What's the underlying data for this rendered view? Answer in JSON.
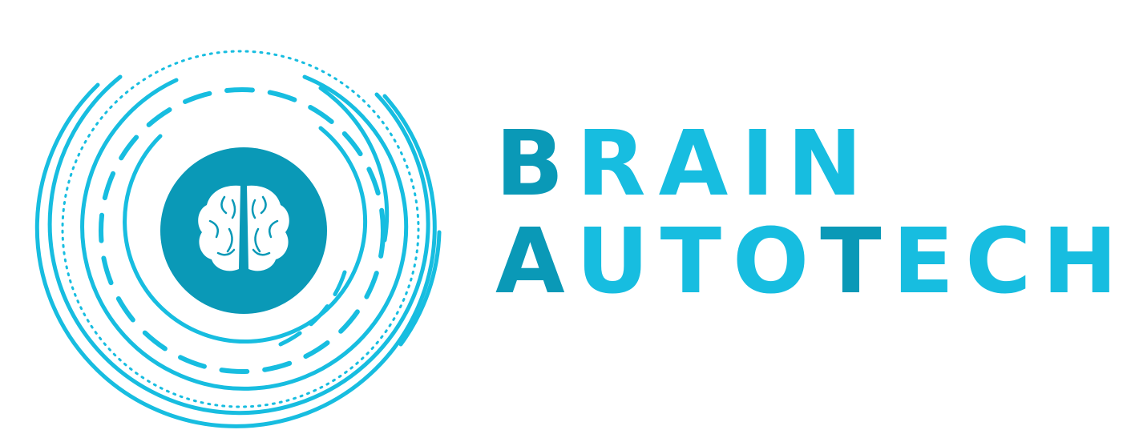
{
  "logo": {
    "line1": [
      "B",
      "R",
      "A",
      "I",
      "N"
    ],
    "line2": [
      "A",
      "U",
      "T",
      "O",
      "T",
      "E",
      "C",
      "H"
    ],
    "icons": {
      "center": "brain-icon"
    }
  },
  "colors": {
    "light_cyan": "#17bde0",
    "dark_teal": "#0a99b7",
    "brain_white": "#ffffff",
    "background": "#ffffff"
  }
}
